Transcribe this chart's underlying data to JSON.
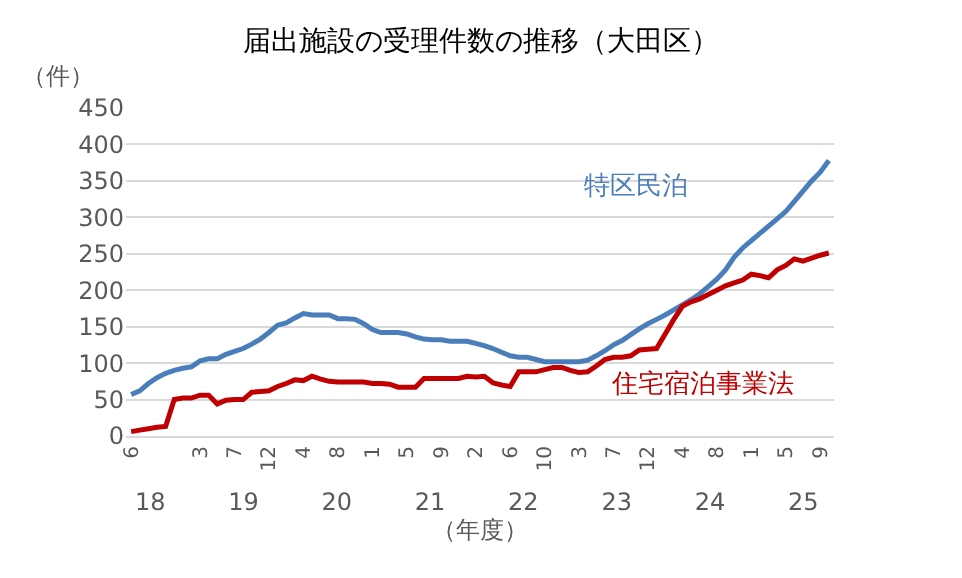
{
  "chart_data": {
    "type": "line",
    "title": "届出施設の受理件数の推移（大田区）",
    "ylabel": "（件）",
    "x2label": "（年度）",
    "categories": [
      "6",
      null,
      null,
      null,
      null,
      null,
      null,
      null,
      "3",
      null,
      null,
      null,
      "7",
      null,
      null,
      null,
      "12",
      null,
      null,
      null,
      "4",
      null,
      null,
      null,
      "8",
      null,
      null,
      null,
      "1",
      null,
      null,
      null,
      "5",
      null,
      null,
      null,
      "9",
      null,
      null,
      null,
      "2",
      null,
      null,
      null,
      "6",
      null,
      null,
      null,
      "10",
      null,
      null,
      null,
      "3",
      null,
      null,
      null,
      "7",
      null,
      null,
      null,
      "12",
      null,
      null,
      null,
      "4",
      null,
      null,
      null,
      "8",
      null,
      null,
      null,
      "1",
      null,
      null,
      null,
      "5",
      null,
      null,
      null,
      "9",
      null
    ],
    "series": [
      {
        "name": "特区民泊",
        "color": "#4a7ebb",
        "values": [
          57,
          62,
          72,
          80,
          86,
          90,
          93,
          95,
          103,
          106,
          106,
          112,
          116,
          120,
          126,
          133,
          142,
          152,
          155,
          162,
          168,
          166,
          166,
          166,
          161,
          161,
          160,
          154,
          146,
          142,
          142,
          142,
          140,
          136,
          133,
          132,
          132,
          130,
          130,
          130,
          127,
          124,
          120,
          115,
          110,
          108,
          108,
          105,
          102,
          102,
          102,
          102,
          102,
          104,
          110,
          117,
          125,
          131,
          139,
          147,
          154,
          160,
          166,
          173,
          180,
          187,
          195,
          205,
          215,
          228,
          245,
          258,
          268,
          278,
          288,
          298,
          308,
          322,
          336,
          350,
          362,
          378
        ]
      },
      {
        "name": "住宅宿泊事業法",
        "color": "#c00000",
        "values": [
          6,
          8,
          10,
          12,
          13,
          50,
          52,
          52,
          56,
          56,
          44,
          49,
          50,
          50,
          60,
          61,
          62,
          68,
          72,
          77,
          76,
          82,
          78,
          75,
          74,
          74,
          74,
          74,
          72,
          72,
          71,
          67,
          67,
          67,
          79,
          79,
          79,
          79,
          79,
          82,
          81,
          82,
          73,
          70,
          68,
          88,
          88,
          88,
          91,
          94,
          94,
          90,
          87,
          88,
          96,
          105,
          108,
          108,
          110,
          118,
          119,
          120,
          140,
          160,
          178,
          184,
          188,
          194,
          200,
          206,
          210,
          214,
          222,
          220,
          217,
          228,
          234,
          243,
          240,
          244,
          248,
          251
        ]
      }
    ],
    "ylim": [
      0,
      450
    ],
    "yticks": [
      0,
      50,
      100,
      150,
      200,
      250,
      300,
      350,
      400,
      450
    ],
    "x2lim": [
      17.74,
      25.33
    ],
    "x2ticks": [
      18,
      19,
      20,
      21,
      22,
      23,
      24,
      25
    ],
    "grid": "y",
    "marker": "none",
    "line_style": "solid"
  }
}
